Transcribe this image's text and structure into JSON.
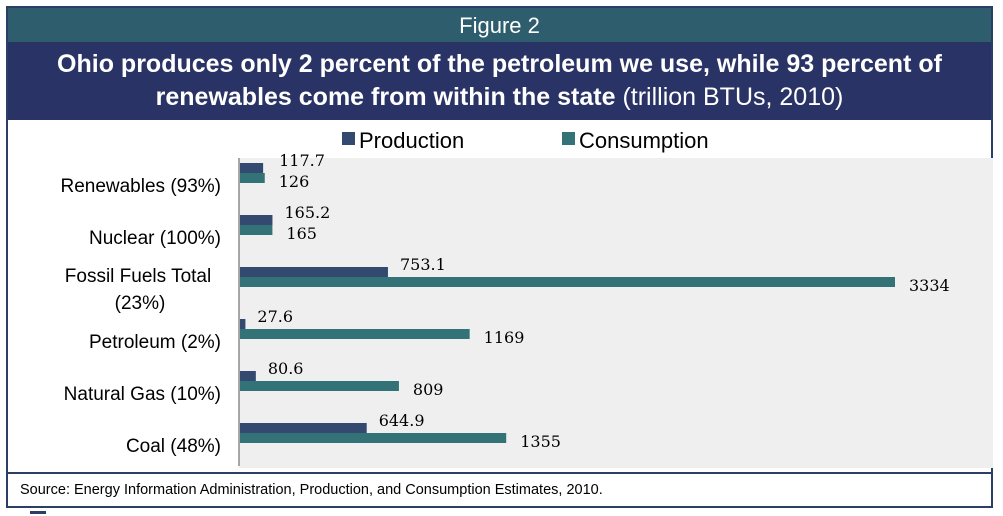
{
  "figure_label": "Figure 2",
  "title_bold": "Ohio produces only 2 percent of the petroleum we use, while 93 percent of renewables come from within the state",
  "title_suffix": "(trillion BTUs, 2010)",
  "source": "Source:  Energy Information Administration, Production, and Consumption Estimates, 2010.",
  "colors": {
    "production": "#34496f",
    "consumption": "#337377",
    "plot_bg": "#efefef"
  },
  "chart_data": {
    "type": "bar",
    "orientation": "horizontal",
    "categories": [
      [
        "Renewables (93%)"
      ],
      [
        "Nuclear (100%)"
      ],
      [
        "Fossil Fuels Total",
        "(23%)"
      ],
      [
        "Petroleum (2%)"
      ],
      [
        "Natural Gas (10%)"
      ],
      [
        "Coal (48%)"
      ]
    ],
    "series": [
      {
        "name": "Production",
        "values": [
          117.7,
          165.2,
          753.1,
          27.6,
          80.6,
          644.9
        ]
      },
      {
        "name": "Consumption",
        "values": [
          126,
          165,
          3334,
          1169,
          809,
          1355
        ]
      }
    ],
    "data_labels": [
      [
        "117.7",
        "165.2",
        "753.1",
        "27.6",
        "80.6",
        "644.9"
      ],
      [
        "126",
        "165",
        "3334",
        "1169",
        "809",
        "1355"
      ]
    ],
    "legend_position": "top",
    "xlim": [
      0,
      3500
    ],
    "grid": false
  }
}
